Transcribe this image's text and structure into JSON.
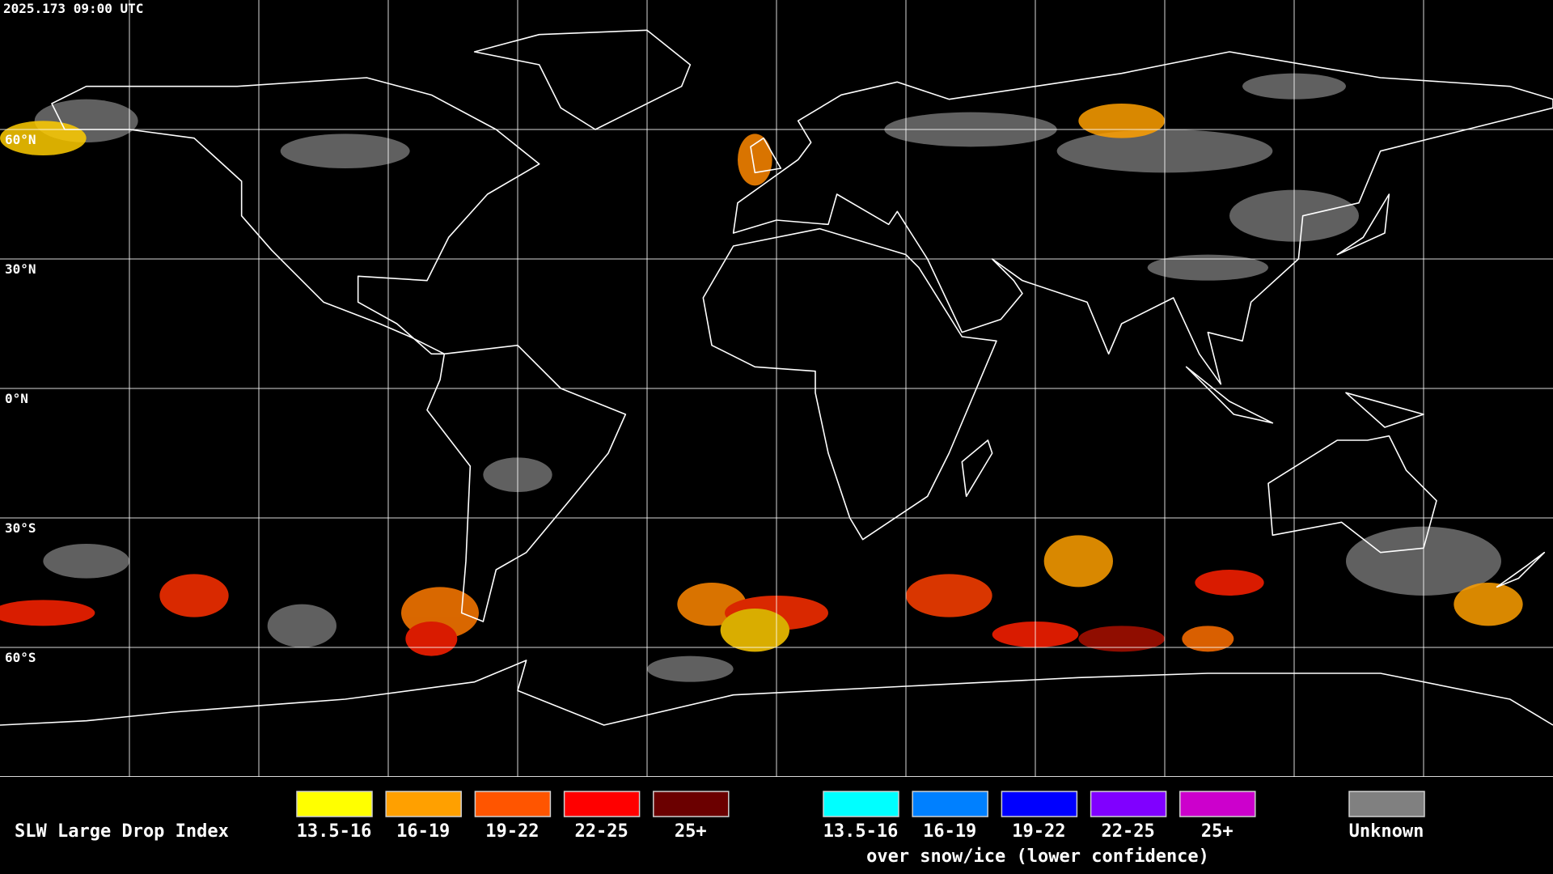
{
  "timestamp": "2025.173 09:00 UTC",
  "latitude_labels": [
    "60°N",
    "30°N",
    "0°N",
    "30°S",
    "60°S"
  ],
  "legend": {
    "title": "SLW Large Drop Index",
    "items": [
      {
        "label": "13.5-16",
        "color": "#ffff00"
      },
      {
        "label": "16-19",
        "color": "#ffa000"
      },
      {
        "label": "19-22",
        "color": "#ff5500"
      },
      {
        "label": "22-25",
        "color": "#ff0000"
      },
      {
        "label": "25+",
        "color": "#6b0000"
      }
    ],
    "snow_ice_items": [
      {
        "label": "13.5-16",
        "color": "#00ffff"
      },
      {
        "label": "16-19",
        "color": "#0080ff"
      },
      {
        "label": "19-22",
        "color": "#0000ff"
      },
      {
        "label": "22-25",
        "color": "#8000ff"
      },
      {
        "label": "25+",
        "color": "#cc00cc"
      }
    ],
    "snow_ice_caption": "over snow/ice (lower confidence)",
    "unknown": {
      "label": "Unknown",
      "color": "#808080"
    }
  }
}
